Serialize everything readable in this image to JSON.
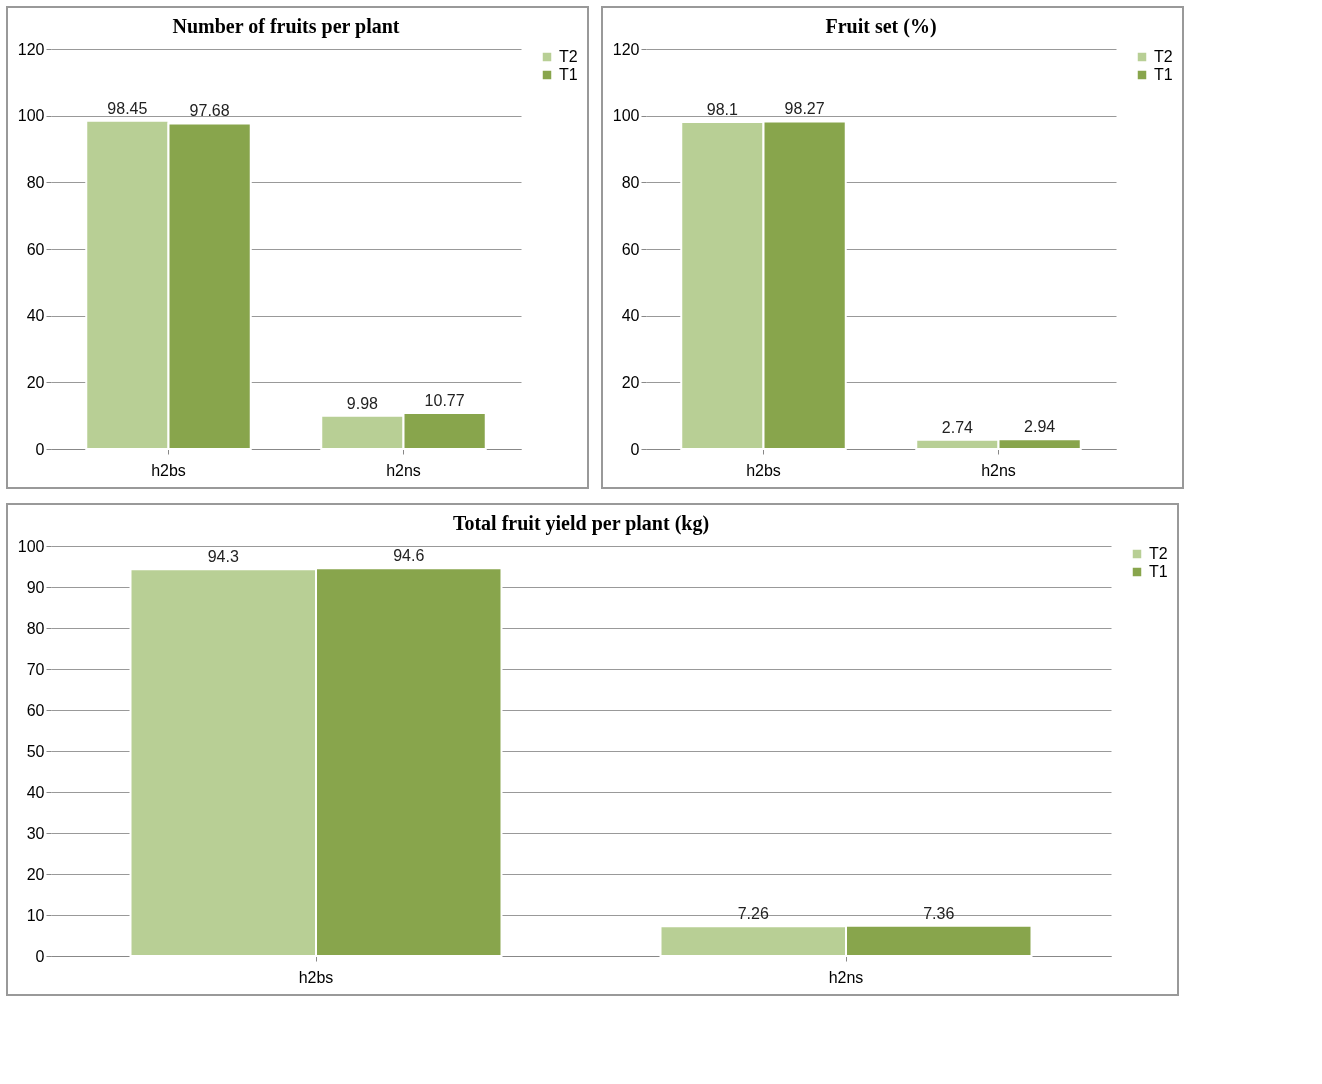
{
  "chart_data": [
    {
      "type": "bar",
      "title": "Number of fruits per plant",
      "categories": [
        "h2bs",
        "h2ns"
      ],
      "series": [
        {
          "name": "T2",
          "color": "#b8cf95",
          "values": [
            98.45,
            9.98
          ]
        },
        {
          "name": "T1",
          "color": "#88a54c",
          "values": [
            97.68,
            10.77
          ]
        }
      ],
      "ylim": [
        0,
        120
      ],
      "yticks": [
        0,
        20,
        40,
        60,
        80,
        100,
        120
      ],
      "grid": "y",
      "legend": "right",
      "data_labels": true
    },
    {
      "type": "bar",
      "title": "Fruit set (%)",
      "categories": [
        "h2bs",
        "h2ns"
      ],
      "series": [
        {
          "name": "T2",
          "color": "#b8cf95",
          "values": [
            98.1,
            2.74
          ]
        },
        {
          "name": "T1",
          "color": "#88a54c",
          "values": [
            98.27,
            2.94
          ]
        }
      ],
      "ylim": [
        0,
        120
      ],
      "yticks": [
        0,
        20,
        40,
        60,
        80,
        100,
        120
      ],
      "grid": "y",
      "legend": "right",
      "data_labels": true
    },
    {
      "type": "bar",
      "title": "Total fruit yield per plant (kg)",
      "categories": [
        "h2bs",
        "h2ns"
      ],
      "series": [
        {
          "name": "T2",
          "color": "#b8cf95",
          "values": [
            94.3,
            7.26
          ]
        },
        {
          "name": "T1",
          "color": "#88a54c",
          "values": [
            94.6,
            7.36
          ]
        }
      ],
      "ylim": [
        0,
        100
      ],
      "yticks": [
        0,
        10,
        20,
        30,
        40,
        50,
        60,
        70,
        80,
        90,
        100
      ],
      "grid": "y",
      "legend": "right",
      "data_labels": true
    }
  ]
}
